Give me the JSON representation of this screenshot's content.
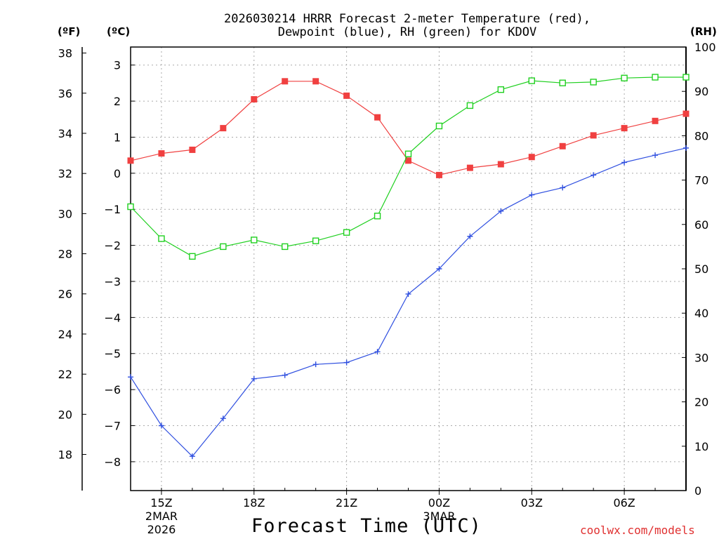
{
  "chart_data": {
    "type": "line",
    "title_line1": "2026030214 HRRR Forecast 2-meter Temperature (red),",
    "title_line2": "Dewpoint (blue), RH (green) for KDOV",
    "xlabel": "Forecast Time (UTC)",
    "credit": "coolwx.com/models",
    "units": {
      "fahrenheit": "(ºF)",
      "celsius": "(ºC)",
      "rh": "(RH)"
    },
    "x_hours": [
      14,
      15,
      16,
      17,
      18,
      19,
      20,
      21,
      22,
      23,
      24,
      25,
      26,
      27,
      28,
      29,
      30,
      31,
      32
    ],
    "xlim": [
      14,
      32
    ],
    "x_ticks": [
      {
        "hour": 15,
        "label": "15Z",
        "sub1": "2MAR",
        "sub2": "2026"
      },
      {
        "hour": 18,
        "label": "18Z"
      },
      {
        "hour": 21,
        "label": "21Z"
      },
      {
        "hour": 24,
        "label": "00Z",
        "sub1": "3MAR"
      },
      {
        "hour": 27,
        "label": "03Z"
      },
      {
        "hour": 30,
        "label": "06Z"
      }
    ],
    "celsius_axis": {
      "ylim": [
        -8.8,
        3.5
      ],
      "ticks": [
        3,
        2,
        1,
        0,
        -1,
        -2,
        -3,
        -4,
        -5,
        -6,
        -7,
        -8
      ]
    },
    "fahrenheit_axis": {
      "ylim": [
        16.2,
        38.3
      ],
      "ticks": [
        38,
        36,
        34,
        32,
        30,
        28,
        26,
        24,
        22,
        20,
        18
      ]
    },
    "rh_axis": {
      "ylim": [
        0,
        100
      ],
      "ticks": [
        100,
        90,
        80,
        70,
        60,
        50,
        40,
        30,
        20,
        10,
        0
      ]
    },
    "grid": true,
    "series": [
      {
        "name": "Temperature",
        "axis": "celsius",
        "color": "#f04040",
        "marker": "filled-square",
        "values": [
          0.35,
          0.55,
          0.65,
          1.25,
          2.05,
          2.55,
          2.55,
          2.15,
          1.55,
          0.35,
          -0.05,
          0.15,
          0.25,
          0.45,
          0.75,
          1.05,
          1.25,
          1.45,
          1.65
        ]
      },
      {
        "name": "Dewpoint",
        "axis": "celsius",
        "color": "#3050e0",
        "marker": "plus",
        "values": [
          -5.65,
          -7.0,
          -7.85,
          -6.8,
          -5.7,
          -5.6,
          -5.3,
          -5.25,
          -4.95,
          -3.35,
          -2.65,
          -1.75,
          -1.05,
          -0.6,
          -0.4,
          -0.05,
          0.3,
          0.5,
          0.7
        ]
      },
      {
        "name": "RH",
        "axis": "rh",
        "color": "#20d020",
        "marker": "open-square",
        "values": [
          64,
          56.8,
          52.8,
          55,
          56.5,
          55,
          56.3,
          58.2,
          61.9,
          75.9,
          82.2,
          86.8,
          90.4,
          92.4,
          91.9,
          92.1,
          93,
          93.2,
          93.2
        ]
      }
    ]
  }
}
